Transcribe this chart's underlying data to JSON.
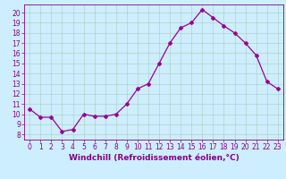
{
  "x": [
    0,
    1,
    2,
    3,
    4,
    5,
    6,
    7,
    8,
    9,
    10,
    11,
    12,
    13,
    14,
    15,
    16,
    17,
    18,
    19,
    20,
    21,
    22,
    23
  ],
  "y": [
    10.5,
    9.7,
    9.7,
    8.3,
    8.5,
    10.0,
    9.8,
    9.8,
    10.0,
    11.0,
    12.5,
    13.0,
    15.0,
    17.0,
    18.5,
    19.0,
    20.3,
    19.5,
    18.7,
    18.0,
    17.0,
    15.8,
    13.2,
    12.5
  ],
  "line_color": "#990099",
  "marker": "D",
  "marker_size": 2,
  "linewidth": 0.9,
  "xlabel": "Windchill (Refroidissement éolien,°C)",
  "xlim": [
    -0.5,
    23.5
  ],
  "ylim": [
    7.5,
    20.8
  ],
  "yticks": [
    8,
    9,
    10,
    11,
    12,
    13,
    14,
    15,
    16,
    17,
    18,
    19,
    20
  ],
  "xticks": [
    0,
    1,
    2,
    3,
    4,
    5,
    6,
    7,
    8,
    9,
    10,
    11,
    12,
    13,
    14,
    15,
    16,
    17,
    18,
    19,
    20,
    21,
    22,
    23
  ],
  "bg_color": "#cceeff",
  "grid_color": "#aaccbb",
  "xlabel_fontsize": 6.5,
  "tick_fontsize": 5.5,
  "tick_color": "#880088",
  "spine_color": "#880088"
}
